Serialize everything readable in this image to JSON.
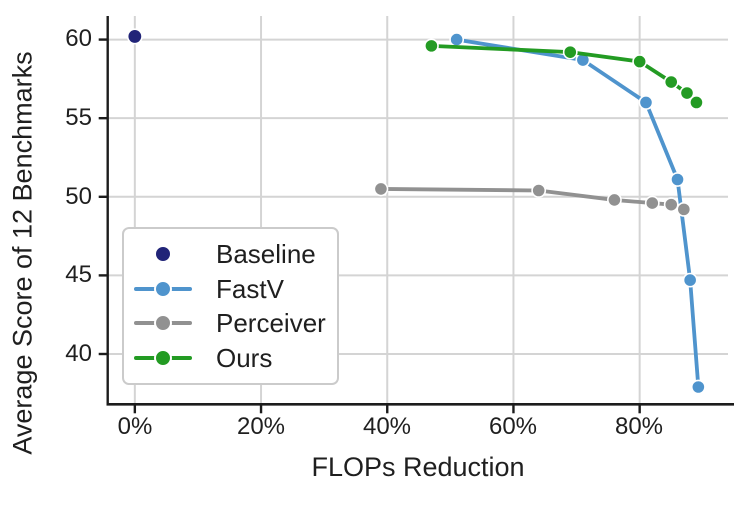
{
  "figure": {
    "background": "#ffffff",
    "text_color": "#1f1f1f",
    "grid_color": "#d4d4d4",
    "spine_color": "#1c1c1c",
    "legend_border_color": "#cbcbcb"
  },
  "chart_data": {
    "type": "line",
    "title": "",
    "xlabel": "FLOPs Reduction",
    "ylabel": "Average Score of 12 Benchmarks",
    "x_ticks": [
      0,
      20,
      40,
      60,
      80
    ],
    "x_tick_labels": [
      "0%",
      "20%",
      "40%",
      "60%",
      "80%"
    ],
    "y_ticks": [
      60,
      55,
      50,
      45,
      40
    ],
    "y_tick_labels": [
      "60",
      "55",
      "50",
      "45",
      "40"
    ],
    "xlim": [
      -4.3,
      94
    ],
    "ylim": [
      36.8,
      61.5
    ],
    "grid": true,
    "legend_position": "lower-left",
    "series": [
      {
        "name": "Baseline",
        "color": "#212478",
        "show_line": false,
        "points": [
          [
            0,
            60.2
          ]
        ]
      },
      {
        "name": "FastV",
        "color": "#4f94cd",
        "show_line": true,
        "points": [
          [
            51,
            60.0
          ],
          [
            71,
            58.7
          ],
          [
            81,
            56.0
          ],
          [
            86,
            51.1
          ],
          [
            88,
            44.7
          ],
          [
            89.3,
            37.9
          ]
        ]
      },
      {
        "name": "Perceiver",
        "color": "#919191",
        "show_line": true,
        "points": [
          [
            39,
            50.5
          ],
          [
            64,
            50.4
          ],
          [
            76,
            49.8
          ],
          [
            82,
            49.6
          ],
          [
            85,
            49.5
          ],
          [
            87,
            49.2
          ]
        ]
      },
      {
        "name": "Ours",
        "color": "#239b23",
        "show_line": true,
        "points": [
          [
            47,
            59.6
          ],
          [
            69,
            59.2
          ],
          [
            80,
            58.6
          ],
          [
            85,
            57.3
          ],
          [
            87.5,
            56.6
          ],
          [
            89,
            56.0
          ]
        ]
      }
    ]
  }
}
